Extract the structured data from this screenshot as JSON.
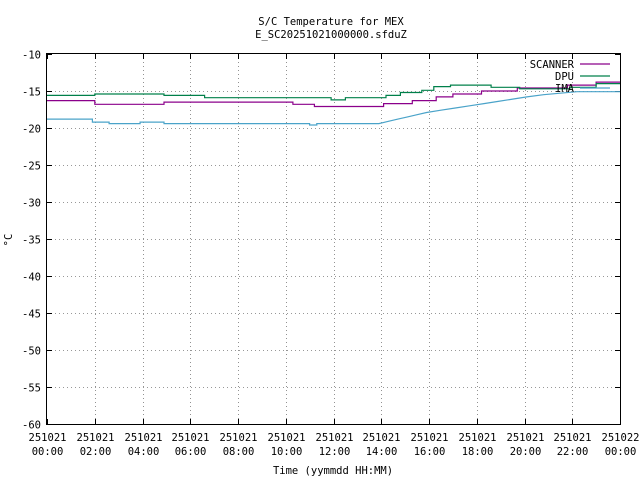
{
  "chart_data": {
    "type": "line",
    "title": "S/C Temperature for MEX",
    "subtitle": "E_SC20251021000000.sfduZ",
    "xlabel": "Time (yymmdd HH:MM)",
    "ylabel": "°C",
    "xlim": [
      0,
      24
    ],
    "ylim": [
      -60,
      -10
    ],
    "yticks": [
      -10,
      -15,
      -20,
      -25,
      -30,
      -35,
      -40,
      -45,
      -50,
      -55,
      -60
    ],
    "xticks": [
      {
        "value": 0,
        "date": "251021",
        "time": "00:00"
      },
      {
        "value": 2,
        "date": "251021",
        "time": "02:00"
      },
      {
        "value": 4,
        "date": "251021",
        "time": "04:00"
      },
      {
        "value": 6,
        "date": "251021",
        "time": "06:00"
      },
      {
        "value": 8,
        "date": "251021",
        "time": "08:00"
      },
      {
        "value": 10,
        "date": "251021",
        "time": "10:00"
      },
      {
        "value": 12,
        "date": "251021",
        "time": "12:00"
      },
      {
        "value": 14,
        "date": "251021",
        "time": "14:00"
      },
      {
        "value": 16,
        "date": "251021",
        "time": "16:00"
      },
      {
        "value": 18,
        "date": "251021",
        "time": "18:00"
      },
      {
        "value": 20,
        "date": "251021",
        "time": "20:00"
      },
      {
        "value": 22,
        "date": "251021",
        "time": "22:00"
      },
      {
        "value": 24,
        "date": "251022",
        "time": "00:00"
      }
    ],
    "grid": true,
    "legend": "top-right",
    "series": [
      {
        "name": "SCANNER",
        "color": "#8b008b",
        "points": [
          [
            0,
            -16.3
          ],
          [
            2,
            -16.3
          ],
          [
            2,
            -16.8
          ],
          [
            4.9,
            -16.8
          ],
          [
            4.9,
            -16.5
          ],
          [
            10.3,
            -16.5
          ],
          [
            10.3,
            -16.8
          ],
          [
            11.2,
            -16.8
          ],
          [
            11.2,
            -17.1
          ],
          [
            14.1,
            -17.1
          ],
          [
            14.1,
            -16.7
          ],
          [
            15.3,
            -16.7
          ],
          [
            15.3,
            -16.3
          ],
          [
            16.3,
            -16.3
          ],
          [
            16.3,
            -15.8
          ],
          [
            17.0,
            -15.8
          ],
          [
            17.0,
            -15.4
          ],
          [
            18.2,
            -15.4
          ],
          [
            18.2,
            -15.0
          ],
          [
            19.7,
            -15.0
          ],
          [
            19.7,
            -14.6
          ],
          [
            21.8,
            -14.6
          ],
          [
            21.8,
            -14.2
          ],
          [
            23.0,
            -14.2
          ],
          [
            23.0,
            -13.8
          ],
          [
            24,
            -13.8
          ]
        ]
      },
      {
        "name": "DPU",
        "color": "#00804a",
        "points": [
          [
            0,
            -15.6
          ],
          [
            2.0,
            -15.6
          ],
          [
            2.0,
            -15.4
          ],
          [
            4.9,
            -15.4
          ],
          [
            4.9,
            -15.6
          ],
          [
            6.6,
            -15.6
          ],
          [
            6.6,
            -15.9
          ],
          [
            11.9,
            -15.9
          ],
          [
            11.9,
            -16.2
          ],
          [
            12.5,
            -16.2
          ],
          [
            12.5,
            -15.9
          ],
          [
            14.2,
            -15.9
          ],
          [
            14.2,
            -15.6
          ],
          [
            14.8,
            -15.6
          ],
          [
            14.8,
            -15.2
          ],
          [
            15.7,
            -15.2
          ],
          [
            15.7,
            -14.9
          ],
          [
            16.2,
            -14.9
          ],
          [
            16.2,
            -14.4
          ],
          [
            16.9,
            -14.4
          ],
          [
            16.9,
            -14.2
          ],
          [
            18.6,
            -14.2
          ],
          [
            18.6,
            -14.5
          ],
          [
            19.8,
            -14.5
          ],
          [
            19.8,
            -14.7
          ],
          [
            21.9,
            -14.7
          ],
          [
            21.9,
            -14.5
          ],
          [
            23.0,
            -14.5
          ],
          [
            23.0,
            -14.0
          ],
          [
            24,
            -14.0
          ]
        ]
      },
      {
        "name": "IMA",
        "color": "#4aa3c9",
        "points": [
          [
            0,
            -18.8
          ],
          [
            1.9,
            -18.8
          ],
          [
            1.9,
            -19.2
          ],
          [
            2.6,
            -19.2
          ],
          [
            2.6,
            -19.4
          ],
          [
            3.9,
            -19.4
          ],
          [
            3.9,
            -19.2
          ],
          [
            4.9,
            -19.2
          ],
          [
            4.9,
            -19.4
          ],
          [
            11.0,
            -19.4
          ],
          [
            11.0,
            -19.6
          ],
          [
            11.3,
            -19.6
          ],
          [
            11.3,
            -19.4
          ],
          [
            13.9,
            -19.4
          ],
          [
            14.3,
            -19.1
          ],
          [
            14.7,
            -18.8
          ],
          [
            15.1,
            -18.5
          ],
          [
            15.5,
            -18.2
          ],
          [
            15.9,
            -17.9
          ],
          [
            16.5,
            -17.6
          ],
          [
            17.1,
            -17.3
          ],
          [
            17.7,
            -17.0
          ],
          [
            18.3,
            -16.7
          ],
          [
            18.9,
            -16.4
          ],
          [
            19.5,
            -16.1
          ],
          [
            20.1,
            -15.8
          ],
          [
            20.8,
            -15.5
          ],
          [
            21.5,
            -15.3
          ],
          [
            22.2,
            -15.1
          ],
          [
            24,
            -15.1
          ]
        ]
      }
    ]
  }
}
